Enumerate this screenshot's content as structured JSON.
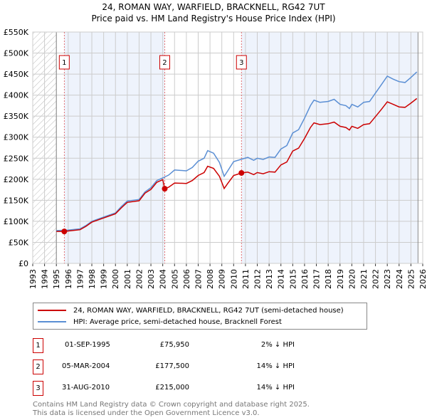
{
  "title": "24, ROMAN WAY, WARFIELD, BRACKNELL, RG42 7UT",
  "subtitle": "Price paid vs. HM Land Registry's House Price Index (HPI)",
  "chart_data": {
    "type": "line",
    "xlim": [
      1993,
      2026
    ],
    "ylim": [
      0,
      550000
    ],
    "y_ticks": [
      0,
      50000,
      100000,
      150000,
      200000,
      250000,
      300000,
      350000,
      400000,
      450000,
      500000,
      550000
    ],
    "y_tick_labels": [
      "£0",
      "£50K",
      "£100K",
      "£150K",
      "£200K",
      "£250K",
      "£300K",
      "£350K",
      "£400K",
      "£450K",
      "£500K",
      "£550K"
    ],
    "x_ticks": [
      1993,
      1994,
      1995,
      1996,
      1997,
      1998,
      1999,
      2000,
      2001,
      2002,
      2003,
      2004,
      2005,
      2006,
      2007,
      2008,
      2009,
      2010,
      2011,
      2012,
      2013,
      2014,
      2015,
      2016,
      2017,
      2018,
      2019,
      2020,
      2021,
      2022,
      2023,
      2024,
      2025,
      2026
    ],
    "data_start": 1995,
    "data_end": 2025.6,
    "grid": true,
    "series": [
      {
        "name": "24, ROMAN WAY, WARFIELD, BRACKNELL, RG42 7UT (semi-detached house)",
        "color": "#cc0000",
        "x": [
          1995,
          1995.67,
          1996,
          1997,
          1997.5,
          1998,
          1999,
          2000,
          2000.5,
          2001,
          2002,
          2002.5,
          2003,
          2003.5,
          2004,
          2004.17,
          2004.5,
          2005,
          2006,
          2006.5,
          2007,
          2007.5,
          2007.8,
          2008.3,
          2008.8,
          2009.2,
          2009.5,
          2010,
          2010.67,
          2011.2,
          2011.7,
          2012,
          2012.5,
          2013,
          2013.5,
          2014,
          2014.5,
          2015,
          2015.5,
          2016,
          2016.5,
          2016.8,
          2017.3,
          2018,
          2018.5,
          2019,
          2019.5,
          2019.8,
          2020,
          2020.5,
          2021,
          2021.5,
          2022,
          2022.5,
          2023,
          2023.5,
          2024,
          2024.5,
          2025,
          2025.5
        ],
        "y": [
          76000,
          75950,
          77000,
          80000,
          88000,
          98000,
          108000,
          118000,
          132000,
          145000,
          149000,
          167000,
          176000,
          193000,
          199000,
          177500,
          181000,
          191000,
          190000,
          197000,
          209000,
          216000,
          231000,
          226000,
          207000,
          178000,
          190000,
          209000,
          215000,
          217000,
          211000,
          216000,
          213000,
          218000,
          217000,
          234000,
          241000,
          267000,
          274000,
          297000,
          323000,
          334000,
          330000,
          332000,
          336000,
          326000,
          323000,
          317000,
          326000,
          321000,
          330000,
          332000,
          349000,
          366000,
          384000,
          378000,
          372000,
          371000,
          381000,
          392000
        ]
      },
      {
        "name": "HPI: Average price, semi-detached house, Bracknell Forest",
        "color": "#5b8fd4",
        "x": [
          1995,
          1996,
          1997,
          1997.5,
          1998,
          1999,
          2000,
          2000.5,
          2001,
          2002,
          2002.5,
          2003,
          2003.5,
          2004,
          2004.5,
          2005,
          2006,
          2006.5,
          2007,
          2007.5,
          2007.8,
          2008.3,
          2008.8,
          2009.2,
          2009.5,
          2010,
          2010.7,
          2011.2,
          2011.7,
          2012,
          2012.5,
          2013,
          2013.5,
          2014,
          2014.5,
          2015,
          2015.5,
          2016,
          2016.5,
          2016.8,
          2017.3,
          2018,
          2018.5,
          2019,
          2019.5,
          2019.8,
          2020,
          2020.5,
          2021,
          2021.5,
          2022,
          2022.5,
          2023,
          2023.5,
          2024,
          2024.5,
          2025,
          2025.5
        ],
        "y": [
          78000,
          79000,
          82000,
          90000,
          100000,
          110000,
          120000,
          135000,
          148000,
          152000,
          170000,
          180000,
          197000,
          203000,
          210000,
          222000,
          220000,
          228000,
          243000,
          250000,
          268000,
          262000,
          240000,
          207000,
          220000,
          242000,
          248000,
          252000,
          245000,
          250000,
          247000,
          253000,
          252000,
          272000,
          280000,
          310000,
          318000,
          345000,
          375000,
          388000,
          383000,
          385000,
          390000,
          378000,
          375000,
          368000,
          378000,
          372000,
          383000,
          385000,
          405000,
          425000,
          445000,
          438000,
          432000,
          430000,
          442000,
          455000
        ]
      }
    ],
    "sales": [
      {
        "label": "1",
        "x": 1995.67,
        "y": 75950
      },
      {
        "label": "2",
        "x": 2004.17,
        "y": 177500
      },
      {
        "label": "3",
        "x": 2010.66,
        "y": 215000
      }
    ]
  },
  "legend": {
    "red": "24, ROMAN WAY, WARFIELD, BRACKNELL, RG42 7UT (semi-detached house)",
    "blue": "HPI: Average price, semi-detached house, Bracknell Forest"
  },
  "table": [
    {
      "num": "1",
      "date": "01-SEP-1995",
      "price": "£75,950",
      "hpi": "2% ↓ HPI"
    },
    {
      "num": "2",
      "date": "05-MAR-2004",
      "price": "£177,500",
      "hpi": "14% ↓ HPI"
    },
    {
      "num": "3",
      "date": "31-AUG-2010",
      "price": "£215,000",
      "hpi": "14% ↓ HPI"
    }
  ],
  "footer": {
    "line1": "Contains HM Land Registry data © Crown copyright and database right 2025.",
    "line2": "This data is licensed under the Open Government Licence v3.0."
  }
}
